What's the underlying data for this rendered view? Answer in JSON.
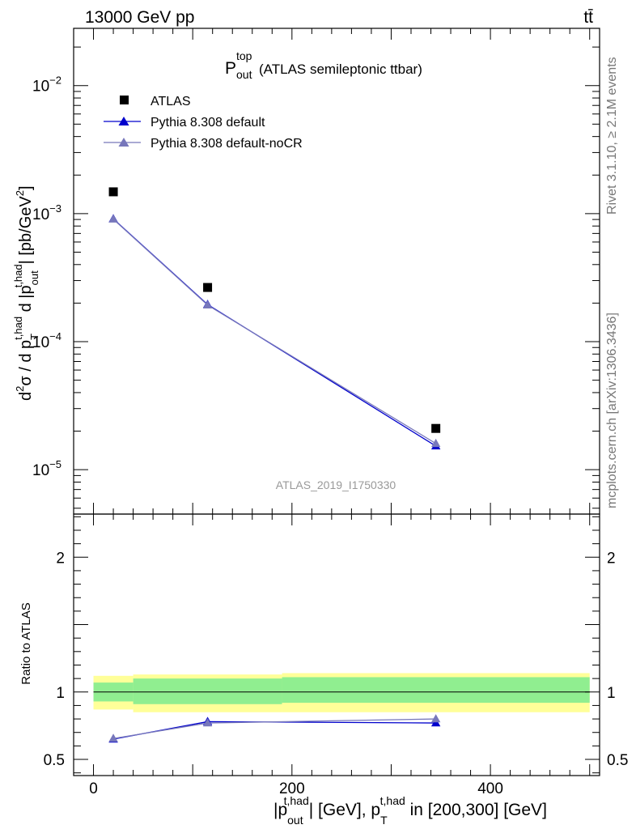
{
  "header": {
    "energy_label": "13000 GeV pp",
    "process_label": "tt̄"
  },
  "side_labels": {
    "rivet": "Rivet 3.1.10, ≥ 2.1M events",
    "mcplots": "mcplots.cern.ch [arXiv:1306.3436]"
  },
  "chart_data": [
    {
      "type": "scatter",
      "panel": "main",
      "title": "P_out^top (ATLAS semileptonic ttbar)",
      "title_main": "P",
      "title_sub": "out",
      "title_sup": "top",
      "title_rest": "(ATLAS semileptonic ttbar)",
      "analysis_id": "ATLAS_2019_I1750330",
      "ylabel": "d²σ / d p_T^{t,had} d |p_out^{t,had}| [pb/GeV²]",
      "yscale": "log",
      "ylim": [
        4.5e-06,
        0.028
      ],
      "xlim": [
        -20,
        510
      ],
      "ytick_labels": [
        {
          "value": 1e-05,
          "base": "10",
          "exp": "−5"
        },
        {
          "value": 0.0001,
          "base": "10",
          "exp": "−4"
        },
        {
          "value": 0.001,
          "base": "10",
          "exp": "−3"
        },
        {
          "value": 0.01,
          "base": "10",
          "exp": "−2"
        }
      ],
      "legend_position": "top-left",
      "series": [
        {
          "name": "ATLAS",
          "color": "#000000",
          "marker": "square",
          "x": [
            20,
            115,
            345
          ],
          "y": [
            0.00148,
            0.000265,
            2.1e-05
          ]
        },
        {
          "name": "Pythia 8.308 default",
          "color": "#0000cc",
          "marker": "triangle",
          "x": [
            20,
            115,
            345
          ],
          "y": [
            0.00091,
            0.000195,
            1.53e-05
          ]
        },
        {
          "name": "Pythia 8.308 default-noCR",
          "color": "#7777bb",
          "marker": "triangle",
          "x": [
            20,
            115,
            345
          ],
          "y": [
            0.000905,
            0.000193,
            1.6e-05
          ]
        }
      ]
    },
    {
      "type": "line",
      "panel": "ratio",
      "ylabel": "Ratio to ATLAS",
      "xlabel": "|p_out^{t,had}| [GeV], p_T^{t,had} in [200,300] [GeV]",
      "ylim": [
        0.38,
        2.32
      ],
      "xlim": [
        -20,
        510
      ],
      "xticks": [
        0,
        200,
        400
      ],
      "xtick_labels": [
        "0",
        "200",
        "400"
      ],
      "yticks": [
        0.5,
        1,
        2
      ],
      "ytick_labels": [
        "0.5",
        "1",
        "2"
      ],
      "bands": [
        {
          "x0": 0,
          "x1": 40,
          "stat_lo": 0.93,
          "stat_hi": 1.07,
          "tot_lo": 0.87,
          "tot_hi": 1.12
        },
        {
          "x0": 40,
          "x1": 190,
          "stat_lo": 0.91,
          "stat_hi": 1.1,
          "tot_lo": 0.85,
          "tot_hi": 1.13
        },
        {
          "x0": 190,
          "x1": 500,
          "stat_lo": 0.92,
          "stat_hi": 1.11,
          "tot_lo": 0.85,
          "tot_hi": 1.14
        }
      ],
      "band_colors": {
        "stat": "#90ee90",
        "total": "#ffff99"
      },
      "series": [
        {
          "name": "Pythia 8.308 default",
          "color": "#0000cc",
          "x": [
            20,
            115,
            345
          ],
          "y": [
            0.65,
            0.78,
            0.77
          ]
        },
        {
          "name": "Pythia 8.308 default-noCR",
          "color": "#7777bb",
          "x": [
            20,
            115,
            345
          ],
          "y": [
            0.655,
            0.77,
            0.8
          ]
        }
      ]
    }
  ]
}
